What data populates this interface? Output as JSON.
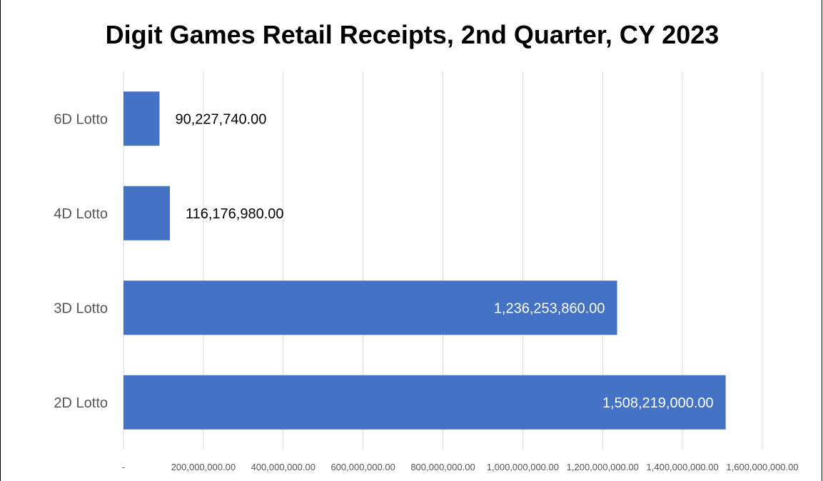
{
  "chart_data": {
    "type": "bar",
    "orientation": "horizontal",
    "title": "Digit Games Retail Receipts, 2nd Quarter, CY 2023",
    "categories": [
      "6D Lotto",
      "4D Lotto",
      "3D Lotto",
      "2D Lotto"
    ],
    "values": [
      90227740,
      116176980,
      1236253860,
      1508219000
    ],
    "data_labels": [
      "90,227,740.00",
      "116,176,980.00",
      "1,236,253,860.00",
      "1,508,219,000.00"
    ],
    "xlim": [
      0,
      1600000000
    ],
    "x_ticks": [
      0,
      200000000,
      400000000,
      600000000,
      800000000,
      1000000000,
      1200000000,
      1400000000,
      1600000000
    ],
    "x_tick_labels": [
      "-",
      "200,000,000.00",
      "400,000,000.00",
      "600,000,000.00",
      "800,000,000.00",
      "1,000,000,000.00",
      "1,200,000,000.00",
      "1,400,000,000.00",
      "1,600,000,000.00"
    ],
    "xlabel": "",
    "ylabel": "",
    "grid": "vertical",
    "legend": "none",
    "bar_color": "#4472c4",
    "label_color_outside": "#000000",
    "label_color_inside": "#ffffff"
  }
}
